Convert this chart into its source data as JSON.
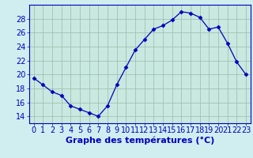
{
  "hours": [
    0,
    1,
    2,
    3,
    4,
    5,
    6,
    7,
    8,
    9,
    10,
    11,
    12,
    13,
    14,
    15,
    16,
    17,
    18,
    19,
    20,
    21,
    22,
    23
  ],
  "temps": [
    19.5,
    18.5,
    17.5,
    17.0,
    15.5,
    15.0,
    14.5,
    14.0,
    15.5,
    18.5,
    21.0,
    23.5,
    25.0,
    26.5,
    27.0,
    27.8,
    29.0,
    28.8,
    28.2,
    26.5,
    26.8,
    24.5,
    21.8,
    20.0
  ],
  "xlim": [
    -0.5,
    23.5
  ],
  "ylim": [
    13.0,
    30.0
  ],
  "yticks": [
    14,
    16,
    18,
    20,
    22,
    24,
    26,
    28
  ],
  "xticks": [
    0,
    1,
    2,
    3,
    4,
    5,
    6,
    7,
    8,
    9,
    10,
    11,
    12,
    13,
    14,
    15,
    16,
    17,
    18,
    19,
    20,
    21,
    22,
    23
  ],
  "xlabel": "Graphe des températures (°C)",
  "line_color": "#0000bb",
  "marker": "D",
  "marker_size": 2.5,
  "bg_color": "#d0eef0",
  "plot_bg_color": "#c8e8e0",
  "grid_color": "#99bbaa",
  "xlabel_fontsize": 8,
  "tick_fontsize": 7,
  "xlabel_bold": true,
  "bottom_bar_color": "#ddeeff"
}
